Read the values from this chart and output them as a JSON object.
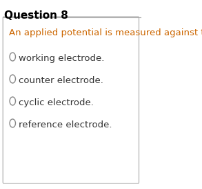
{
  "title": "Question 8",
  "question": "An applied potential is measured against the",
  "options": [
    "working electrode.",
    "counter electrode.",
    "cyclic electrode.",
    "reference electrode."
  ],
  "bg_color": "#ffffff",
  "title_color": "#000000",
  "question_color": "#cc6600",
  "option_color": "#333333",
  "title_fontsize": 11,
  "question_fontsize": 9.5,
  "option_fontsize": 9.5,
  "border_color": "#aaaaaa",
  "circle_color": "#888888"
}
